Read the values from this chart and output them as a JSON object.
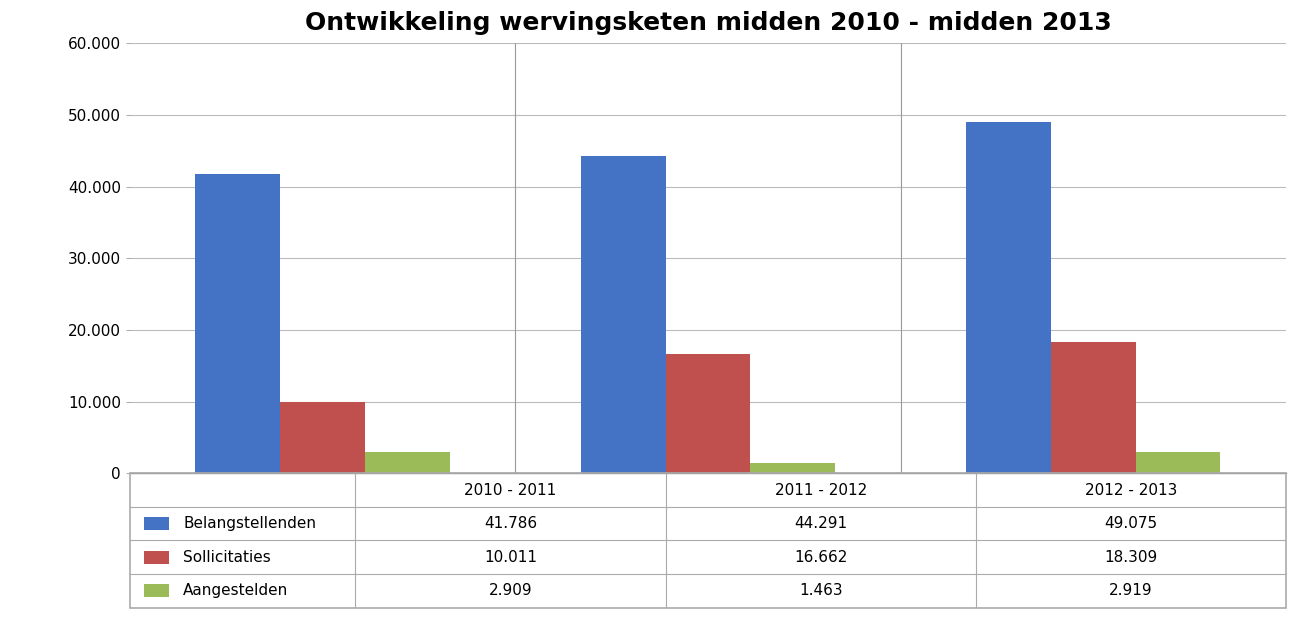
{
  "title": "Ontwikkeling wervingsketen midden 2010 - midden 2013",
  "groups": [
    "2010 - 2011",
    "2011 - 2012",
    "2012 - 2013"
  ],
  "series": [
    {
      "label": "Belangstellenden",
      "color": "#4472C4",
      "values": [
        41786,
        44291,
        49075
      ]
    },
    {
      "label": "Sollicitaties",
      "color": "#C0504D",
      "values": [
        10011,
        16662,
        18309
      ]
    },
    {
      "label": "Aangestelden",
      "color": "#9BBB59",
      "values": [
        2909,
        1463,
        2919
      ]
    }
  ],
  "table_values": [
    [
      "41.786",
      "44.291",
      "49.075"
    ],
    [
      "10.011",
      "16.662",
      "18.309"
    ],
    [
      "2.909",
      "1.463",
      "2.919"
    ]
  ],
  "ylim": [
    0,
    60000
  ],
  "yticks": [
    0,
    10000,
    20000,
    30000,
    40000,
    50000,
    60000
  ],
  "ytick_labels": [
    "0",
    "10.000",
    "20.000",
    "30.000",
    "40.000",
    "50.000",
    "60.000"
  ],
  "title_fontsize": 18,
  "background_color": "#FFFFFF",
  "bar_width": 0.22,
  "grid_color": "#BBBBBB",
  "divider_color": "#999999",
  "table_line_color": "#AAAAAA"
}
